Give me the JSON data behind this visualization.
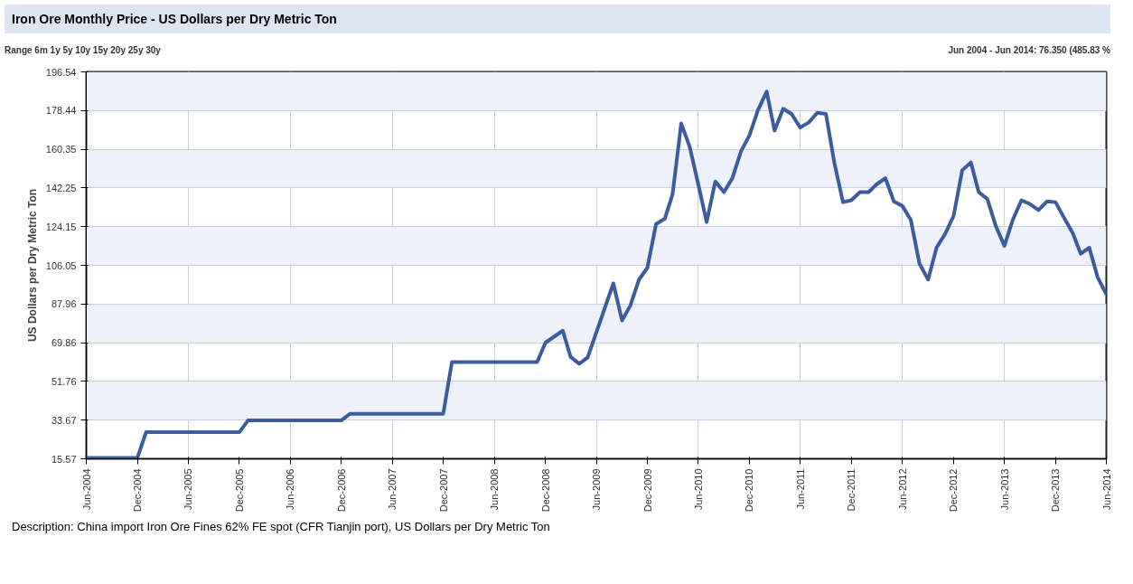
{
  "chart_data": {
    "type": "line",
    "title": "Iron Ore Monthly Price - US Dollars per Dry Metric Ton",
    "ylabel": "US Dollars per Dry Metric Ton",
    "annotations": [
      "Range 6m 1y 5y 10y 15y 20y 25y 30y",
      "Jun 2004 - Jun 2014: 76.350 (485.83 %",
      "Description: China import Iron Ore Fines 62% FE spot (CFR Tianjin port), US Dollars per Dry Metric Ton"
    ],
    "x": [
      "2004-06",
      "2004-12",
      "2005-01",
      "2005-12",
      "2006-01",
      "2006-12",
      "2007-01",
      "2007-12",
      "2008-01",
      "2008-11",
      "2008-12",
      "2009-02",
      "2009-03",
      "2009-04",
      "2009-05",
      "2009-08",
      "2009-09",
      "2009-10",
      "2009-11",
      "2009-12",
      "2010-01",
      "2010-02",
      "2010-03",
      "2010-04",
      "2010-05",
      "2010-06",
      "2010-07",
      "2010-08",
      "2010-09",
      "2010-10",
      "2010-11",
      "2010-12",
      "2011-01",
      "2011-02",
      "2011-03",
      "2011-04",
      "2011-05",
      "2011-06",
      "2011-07",
      "2011-08",
      "2011-09",
      "2011-10",
      "2011-11",
      "2011-12",
      "2012-01",
      "2012-02",
      "2012-03",
      "2012-04",
      "2012-05",
      "2012-06",
      "2012-07",
      "2012-08",
      "2012-09",
      "2012-10",
      "2012-11",
      "2012-12",
      "2013-01",
      "2013-02",
      "2013-03",
      "2013-04",
      "2013-05",
      "2013-06",
      "2013-07",
      "2013-08",
      "2013-09",
      "2013-10",
      "2013-11",
      "2013-12",
      "2014-01",
      "2014-02",
      "2014-03",
      "2014-04",
      "2014-05",
      "2014-06"
    ],
    "series": [
      {
        "color": "#3b5c9e",
        "values": [
          16,
          16,
          28,
          28,
          33.5,
          33.5,
          36.6,
          36.6,
          60.8,
          60.8,
          69.9,
          75.5,
          63.2,
          60,
          63,
          97.6,
          80.3,
          87.3,
          99.4,
          105,
          125.4,
          127.8,
          139.3,
          172.4,
          161.6,
          144,
          126.3,
          145.3,
          140.3,
          146.8,
          159.4,
          166.8,
          178.7,
          187.3,
          169.1,
          179.3,
          176.9,
          170.5,
          172.8,
          177.4,
          176.9,
          154.2,
          135.6,
          136.5,
          140.3,
          140.3,
          144,
          146.8,
          136,
          133.8,
          127.3,
          106.8,
          99.4,
          114.3,
          120.8,
          129.1,
          150.5,
          154.2,
          140.3,
          137.1,
          124.5,
          115.2,
          127.3,
          136.5,
          134.7,
          131.9,
          136,
          135.6,
          128.2,
          121.1,
          111.5,
          114.3,
          100.4,
          92.5
        ]
      }
    ],
    "xlim": [
      "2004-06",
      "2014-06"
    ],
    "xticks": [
      {
        "value": "2004-06",
        "label": "Jun-2004"
      },
      {
        "value": "2004-12",
        "label": "Dec-2004"
      },
      {
        "value": "2005-06",
        "label": "Jun-2005"
      },
      {
        "value": "2005-12",
        "label": "Dec-2005"
      },
      {
        "value": "2006-06",
        "label": "Jun-2006"
      },
      {
        "value": "2006-12",
        "label": "Dec-2006"
      },
      {
        "value": "2007-06",
        "label": "Jun-2007"
      },
      {
        "value": "2007-12",
        "label": "Dec-2007"
      },
      {
        "value": "2008-06",
        "label": "Jun-2008"
      },
      {
        "value": "2008-12",
        "label": "Dec-2008"
      },
      {
        "value": "2009-06",
        "label": "Jun-2009"
      },
      {
        "value": "2009-12",
        "label": "Dec-2009"
      },
      {
        "value": "2010-06",
        "label": "Jun-2010"
      },
      {
        "value": "2010-12",
        "label": "Dec-2010"
      },
      {
        "value": "2011-06",
        "label": "Jun-2011"
      },
      {
        "value": "2011-12",
        "label": "Dec-2011"
      },
      {
        "value": "2012-06",
        "label": "Jun-2012"
      },
      {
        "value": "2012-12",
        "label": "Dec-2012"
      },
      {
        "value": "2013-06",
        "label": "Jun-2013"
      },
      {
        "value": "2013-12",
        "label": "Dec-2013"
      },
      {
        "value": "2014-06",
        "label": "Jun-2014"
      }
    ],
    "ylim": [
      15.57,
      196.54
    ],
    "yticks": [
      15.57,
      33.67,
      51.76,
      69.86,
      87.96,
      106.05,
      124.15,
      142.25,
      160.35,
      178.44,
      196.54
    ],
    "grid": true,
    "marker": "none",
    "line_style": "solid"
  }
}
